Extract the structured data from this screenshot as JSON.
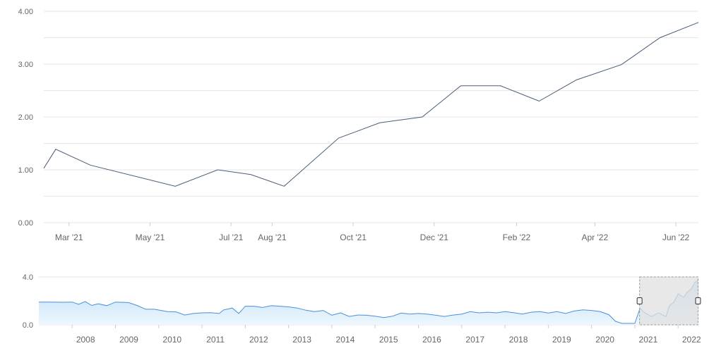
{
  "colors": {
    "main_line": "#4a5d78",
    "grid": "#e6e6e6",
    "nav_line": "#4a90d9",
    "nav_fill_top": "#bcdcf6",
    "nav_fill_bottom": "#eef7fe",
    "selection_fill": "#e0e0e0",
    "selection_border": "#999999",
    "handle_fill": "#f2f2f2",
    "handle_stroke": "#333333"
  },
  "chart_data": [
    {
      "type": "line",
      "title": "",
      "xlabel": "",
      "ylabel": "",
      "ylim": [
        0,
        4
      ],
      "y_ticks": [
        "0.00",
        "1.00",
        "2.00",
        "3.00",
        "4.00"
      ],
      "y_tick_values": [
        0,
        1,
        2,
        3,
        4
      ],
      "x_ticks": [
        {
          "label": "Mar '21",
          "date": "2021-03-01"
        },
        {
          "label": "May '21",
          "date": "2021-05-01"
        },
        {
          "label": "Jul '21",
          "date": "2021-07-01"
        },
        {
          "label": "Aug '21",
          "date": "2021-08-01"
        },
        {
          "label": "Oct '21",
          "date": "2021-10-01"
        },
        {
          "label": "Dec '21",
          "date": "2021-12-01"
        },
        {
          "label": "Feb '22",
          "date": "2022-02-01"
        },
        {
          "label": "Apr '22",
          "date": "2022-04-01"
        },
        {
          "label": "Jun '22",
          "date": "2022-06-01"
        }
      ],
      "xlim": [
        "2021-02-10",
        "2022-06-18"
      ],
      "grid": true,
      "series": [
        {
          "points": [
            {
              "date": "2021-02-10",
              "value": 1.03
            },
            {
              "date": "2021-02-19",
              "value": 1.39
            },
            {
              "date": "2021-03-17",
              "value": 1.09
            },
            {
              "date": "2021-05-20",
              "value": 0.69
            },
            {
              "date": "2021-06-21",
              "value": 1.0
            },
            {
              "date": "2021-07-16",
              "value": 0.91
            },
            {
              "date": "2021-08-10",
              "value": 0.69
            },
            {
              "date": "2021-09-20",
              "value": 1.6
            },
            {
              "date": "2021-10-21",
              "value": 1.89
            },
            {
              "date": "2021-11-22",
              "value": 2.0
            },
            {
              "date": "2021-12-21",
              "value": 2.59
            },
            {
              "date": "2022-01-20",
              "value": 2.59
            },
            {
              "date": "2022-02-18",
              "value": 2.3
            },
            {
              "date": "2022-03-18",
              "value": 2.7
            },
            {
              "date": "2022-04-21",
              "value": 2.99
            },
            {
              "date": "2022-05-20",
              "value": 3.5
            },
            {
              "date": "2022-06-18",
              "value": 3.79
            }
          ]
        }
      ]
    },
    {
      "type": "area",
      "role": "navigator",
      "ylim": [
        0,
        4
      ],
      "y_ticks": [
        "0.0",
        "4.0"
      ],
      "y_tick_values": [
        0,
        4
      ],
      "x_ticks": [
        "2008",
        "2009",
        "2010",
        "2011",
        "2012",
        "2013",
        "2014",
        "2015",
        "2016",
        "2017",
        "2018",
        "2019",
        "2020",
        "2021",
        "2022"
      ],
      "xlim": [
        2007.23,
        2022.47
      ],
      "selected_range": [
        "2021-02-10",
        "2022-06-18"
      ],
      "series": [
        {
          "points": [
            [
              2007.23,
              1.9
            ],
            [
              2007.5,
              1.9
            ],
            [
              2007.8,
              1.88
            ],
            [
              2008.0,
              1.9
            ],
            [
              2008.15,
              1.72
            ],
            [
              2008.3,
              1.95
            ],
            [
              2008.45,
              1.62
            ],
            [
              2008.6,
              1.76
            ],
            [
              2008.8,
              1.6
            ],
            [
              2009.0,
              1.9
            ],
            [
              2009.3,
              1.86
            ],
            [
              2009.5,
              1.62
            ],
            [
              2009.7,
              1.3
            ],
            [
              2009.9,
              1.3
            ],
            [
              2010.2,
              1.1
            ],
            [
              2010.4,
              1.08
            ],
            [
              2010.6,
              0.82
            ],
            [
              2010.8,
              0.95
            ],
            [
              2011.0,
              1.0
            ],
            [
              2011.2,
              1.02
            ],
            [
              2011.4,
              0.95
            ],
            [
              2011.5,
              1.25
            ],
            [
              2011.7,
              1.4
            ],
            [
              2011.85,
              0.95
            ],
            [
              2012.0,
              1.55
            ],
            [
              2012.2,
              1.55
            ],
            [
              2012.4,
              1.45
            ],
            [
              2012.6,
              1.6
            ],
            [
              2012.8,
              1.55
            ],
            [
              2013.0,
              1.5
            ],
            [
              2013.2,
              1.4
            ],
            [
              2013.4,
              1.22
            ],
            [
              2013.6,
              1.1
            ],
            [
              2013.8,
              1.2
            ],
            [
              2014.0,
              0.8
            ],
            [
              2014.2,
              1.0
            ],
            [
              2014.4,
              0.7
            ],
            [
              2014.6,
              0.82
            ],
            [
              2014.8,
              0.8
            ],
            [
              2015.0,
              0.72
            ],
            [
              2015.2,
              0.6
            ],
            [
              2015.4,
              0.72
            ],
            [
              2015.6,
              0.98
            ],
            [
              2015.8,
              0.9
            ],
            [
              2016.0,
              0.95
            ],
            [
              2016.2,
              0.9
            ],
            [
              2016.4,
              0.8
            ],
            [
              2016.6,
              0.7
            ],
            [
              2016.8,
              0.82
            ],
            [
              2017.0,
              0.9
            ],
            [
              2017.2,
              1.1
            ],
            [
              2017.4,
              1.0
            ],
            [
              2017.6,
              1.05
            ],
            [
              2017.8,
              1.0
            ],
            [
              2018.0,
              1.1
            ],
            [
              2018.2,
              1.02
            ],
            [
              2018.4,
              0.9
            ],
            [
              2018.6,
              1.05
            ],
            [
              2018.8,
              1.1
            ],
            [
              2019.0,
              0.98
            ],
            [
              2019.2,
              1.1
            ],
            [
              2019.4,
              0.95
            ],
            [
              2019.6,
              1.15
            ],
            [
              2019.8,
              1.25
            ],
            [
              2020.0,
              1.2
            ],
            [
              2020.2,
              1.1
            ],
            [
              2020.4,
              0.85
            ],
            [
              2020.55,
              0.3
            ],
            [
              2020.7,
              0.12
            ],
            [
              2020.9,
              0.12
            ],
            [
              2021.0,
              0.12
            ],
            [
              2021.12,
              1.39
            ],
            [
              2021.2,
              1.09
            ],
            [
              2021.38,
              0.69
            ],
            [
              2021.55,
              1.0
            ],
            [
              2021.72,
              0.69
            ],
            [
              2021.8,
              1.6
            ],
            [
              2021.9,
              1.89
            ],
            [
              2022.0,
              2.59
            ],
            [
              2022.13,
              2.3
            ],
            [
              2022.2,
              2.7
            ],
            [
              2022.3,
              2.99
            ],
            [
              2022.38,
              3.5
            ],
            [
              2022.47,
              3.79
            ]
          ]
        }
      ]
    }
  ]
}
